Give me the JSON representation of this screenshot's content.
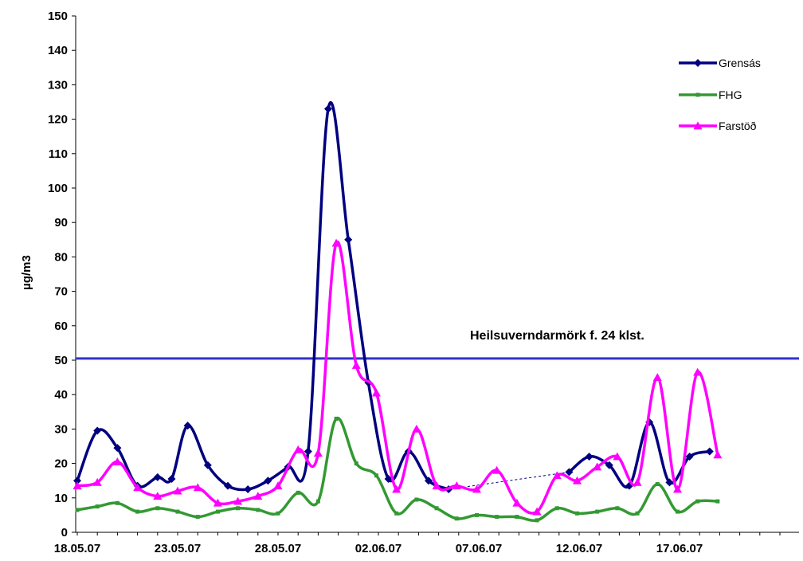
{
  "chart_data": {
    "type": "line",
    "ylabel": "µg/m3",
    "ylim": [
      0,
      150
    ],
    "yticks": [
      "0",
      "10",
      "20",
      "30",
      "40",
      "50",
      "60",
      "70",
      "80",
      "90",
      "100",
      "110",
      "120",
      "130",
      "140",
      "150"
    ],
    "xrange": [
      0,
      41
    ],
    "xticks": [
      {
        "x": 0,
        "label": "18.05.07"
      },
      {
        "x": 5,
        "label": "23.05.07"
      },
      {
        "x": 10,
        "label": "28.05.07"
      },
      {
        "x": 15,
        "label": "02.06.07"
      },
      {
        "x": 20,
        "label": "07.06.07"
      },
      {
        "x": 25,
        "label": "12.06.07"
      },
      {
        "x": 30,
        "label": "17.06.07"
      }
    ],
    "grid": false,
    "legend_position": "top-right",
    "threshold": {
      "value": 50.5,
      "label": "Heilsuverndarmörk f.  24 klst.",
      "color": "#3333cc"
    },
    "series": [
      {
        "name": "Grensás",
        "color": "#000080",
        "marker": "diamond",
        "segments": [
          [
            [
              0,
              15
            ],
            [
              1,
              29.5
            ],
            [
              2,
              24.5
            ],
            [
              3,
              13.5
            ],
            [
              4,
              16
            ],
            [
              4.7,
              15.5
            ],
            [
              5.5,
              31
            ],
            [
              6.5,
              19.5
            ],
            [
              7.5,
              13.5
            ],
            [
              8.5,
              12.5
            ],
            [
              9.5,
              15
            ],
            [
              10.5,
              19
            ],
            [
              11.5,
              23.5
            ],
            [
              12.5,
              123
            ],
            [
              13.5,
              85
            ],
            [
              14.5,
              43.5
            ],
            [
              15.5,
              15.5
            ],
            [
              16.5,
              23.5
            ],
            [
              17.5,
              15
            ],
            [
              18.5,
              12.5
            ]
          ],
          [
            [
              24.5,
              17.5
            ],
            [
              25.5,
              22
            ],
            [
              26.5,
              19.5
            ],
            [
              27.5,
              13.5
            ],
            [
              28.5,
              32
            ],
            [
              29.5,
              14.5
            ],
            [
              30.5,
              22
            ],
            [
              31.5,
              23.5
            ]
          ]
        ],
        "gap_connector": [
          [
            18.5,
            12.5
          ],
          [
            24.5,
            17.5
          ]
        ]
      },
      {
        "name": "FHG",
        "color": "#339933",
        "marker": "square",
        "segments": [
          [
            [
              0,
              6.5
            ],
            [
              1,
              7.5
            ],
            [
              2,
              8.5
            ],
            [
              3,
              6
            ],
            [
              4,
              7
            ],
            [
              5,
              6
            ],
            [
              6,
              4.5
            ],
            [
              7,
              6
            ],
            [
              8,
              7
            ],
            [
              9,
              6.5
            ],
            [
              10,
              5.5
            ],
            [
              11,
              11.5
            ],
            [
              12,
              9
            ],
            [
              12.9,
              33
            ],
            [
              13.9,
              20
            ],
            [
              14.9,
              16.5
            ],
            [
              15.9,
              5.5
            ],
            [
              16.9,
              9.5
            ],
            [
              17.9,
              7
            ],
            [
              18.9,
              4
            ],
            [
              19.9,
              5
            ],
            [
              20.9,
              4.5
            ],
            [
              21.9,
              4.5
            ],
            [
              22.9,
              3.5
            ],
            [
              23.9,
              7
            ],
            [
              24.9,
              5.5
            ],
            [
              25.9,
              6
            ],
            [
              26.9,
              7
            ],
            [
              27.9,
              5.5
            ],
            [
              28.9,
              14
            ],
            [
              29.9,
              6
            ],
            [
              30.9,
              9
            ],
            [
              31.9,
              9
            ]
          ]
        ]
      },
      {
        "name": "Farstöð",
        "color": "#ff00ff",
        "marker": "triangle",
        "segments": [
          [
            [
              0,
              13.5
            ],
            [
              1,
              14.5
            ],
            [
              2,
              20.5
            ],
            [
              3,
              13
            ],
            [
              4,
              10.5
            ],
            [
              5,
              12
            ],
            [
              6,
              13
            ],
            [
              7,
              8.5
            ],
            [
              8,
              9
            ],
            [
              9,
              10.5
            ],
            [
              10,
              13.5
            ],
            [
              11,
              24
            ],
            [
              12,
              23
            ],
            [
              12.9,
              84
            ],
            [
              13.9,
              48.5
            ],
            [
              14.9,
              40.5
            ],
            [
              15.9,
              12.5
            ],
            [
              16.9,
              30
            ],
            [
              17.9,
              13.5
            ],
            [
              18.9,
              13.5
            ],
            [
              19.9,
              12.5
            ],
            [
              20.9,
              18
            ],
            [
              21.9,
              8.5
            ],
            [
              22.9,
              6
            ],
            [
              23.9,
              16.5
            ],
            [
              24.9,
              15
            ],
            [
              25.9,
              19
            ],
            [
              26.9,
              22
            ],
            [
              27.9,
              14.5
            ],
            [
              28.9,
              45
            ],
            [
              29.9,
              12.5
            ],
            [
              30.9,
              46.5
            ],
            [
              31.9,
              22.5
            ]
          ]
        ]
      }
    ]
  }
}
